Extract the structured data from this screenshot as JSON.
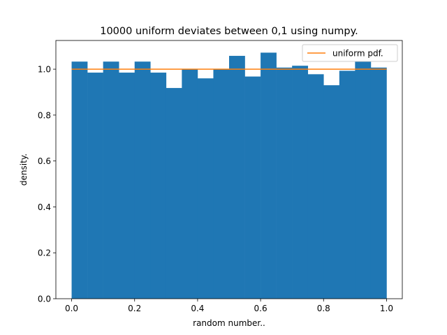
{
  "chart_data": {
    "type": "bar",
    "title": "10000 uniform deviates between 0,1 using numpy.",
    "xlabel": "random number..",
    "ylabel": "density.",
    "xlim": [
      -0.05,
      1.05
    ],
    "ylim": [
      0,
      1.125
    ],
    "bin_edges": [
      0.0,
      0.05,
      0.1,
      0.15,
      0.2,
      0.25,
      0.3,
      0.35,
      0.4,
      0.45,
      0.5,
      0.55,
      0.6,
      0.65,
      0.7,
      0.75,
      0.8,
      0.85,
      0.9,
      0.95,
      1.0
    ],
    "values": [
      1.033,
      0.985,
      1.033,
      0.985,
      1.033,
      0.985,
      0.918,
      1.0,
      0.96,
      1.0,
      1.058,
      0.968,
      1.072,
      1.007,
      1.015,
      0.978,
      0.93,
      0.993,
      1.033,
      1.007
    ],
    "bar_color": "#1f77b4",
    "line": {
      "name": "uniform pdf.",
      "x": [
        0.0,
        1.0
      ],
      "y": [
        1.0,
        1.0
      ],
      "color": "#ff7f0e"
    },
    "xticks": [
      0.0,
      0.2,
      0.4,
      0.6,
      0.8,
      1.0
    ],
    "xtick_labels": [
      "0.0",
      "0.2",
      "0.4",
      "0.6",
      "0.8",
      "1.0"
    ],
    "yticks": [
      0.0,
      0.2,
      0.4,
      0.6,
      0.8,
      1.0
    ],
    "ytick_labels": [
      "0.0",
      "0.2",
      "0.4",
      "0.6",
      "0.8",
      "1.0"
    ],
    "legend_position": "top-right",
    "grid": false
  }
}
